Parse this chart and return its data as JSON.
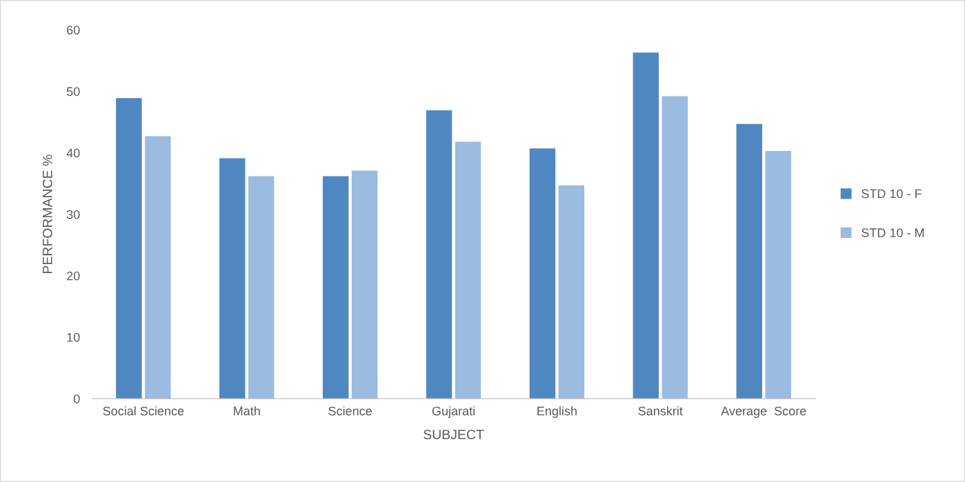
{
  "chart_data": {
    "type": "bar",
    "xlabel": "SUBJECT",
    "ylabel": "PERFORMANCE %",
    "categories": [
      "Social Science",
      "Math",
      "Science",
      "Gujarati",
      "English",
      "Sanskrit",
      "Average  Score"
    ],
    "series": [
      {
        "name": "STD 10 - F",
        "color": "#4f88c0",
        "values": [
          48.9,
          39.1,
          36.2,
          46.9,
          40.7,
          56.3,
          44.7
        ]
      },
      {
        "name": "STD 10 - M",
        "color": "#9bbbe0",
        "values": [
          42.7,
          36.2,
          37.1,
          41.8,
          34.7,
          49.2,
          40.3
        ]
      }
    ],
    "ylim": [
      0,
      60
    ],
    "yticks": [
      0,
      10,
      20,
      30,
      40,
      50,
      60
    ],
    "grid": false,
    "legend": "right"
  }
}
